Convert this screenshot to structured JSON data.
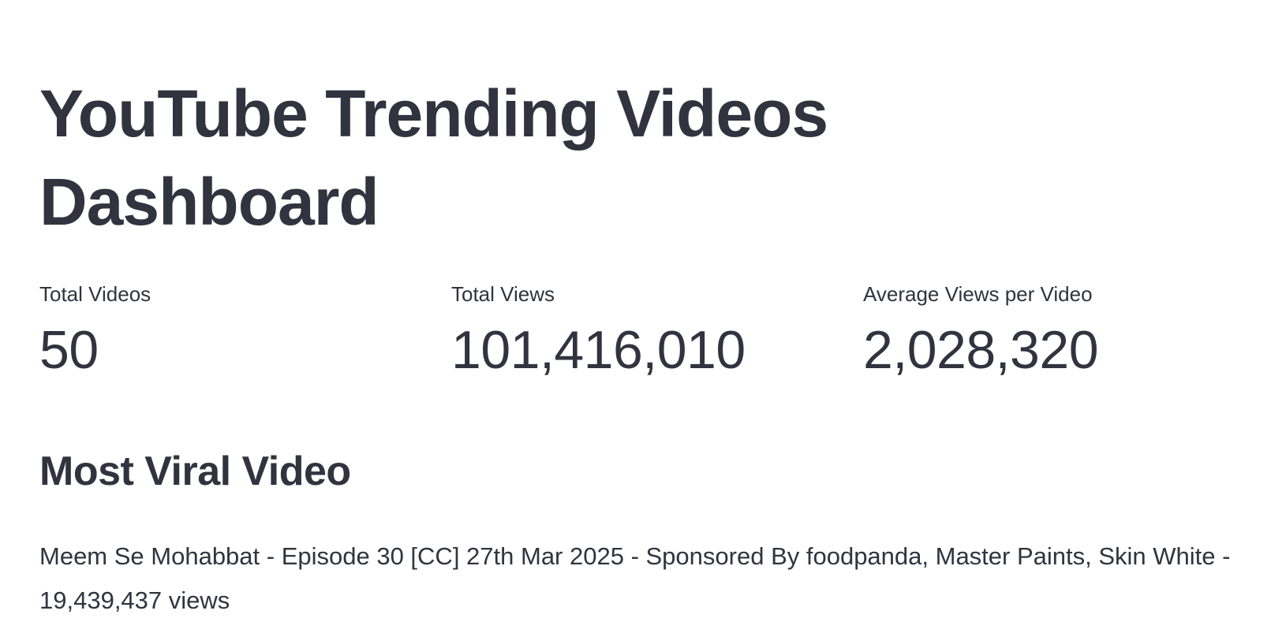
{
  "header": {
    "title": "YouTube Trending Videos Dashboard"
  },
  "metrics": [
    {
      "label": "Total Videos",
      "value": "50"
    },
    {
      "label": "Total Views",
      "value": "101,416,010"
    },
    {
      "label": "Average Views per Video",
      "value": "2,028,320"
    }
  ],
  "most_viral": {
    "heading": "Most Viral Video",
    "text": "Meem Se Mohabbat - Episode 30 [CC] 27th Mar 2025 - Sponsored By foodpanda, Master Paints, Skin White - 19,439,437 views"
  },
  "colors": {
    "text": "#31333f",
    "background": "#ffffff"
  }
}
